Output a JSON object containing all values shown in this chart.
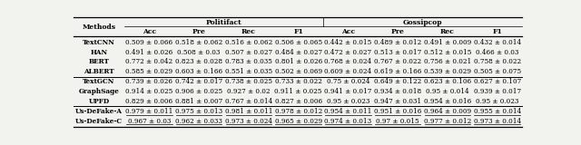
{
  "title_politifact": "Politifact",
  "title_gossipcop": "Gossipcop",
  "col_header": [
    "Acc",
    "Pre",
    "Rec",
    "F1"
  ],
  "row_labels": [
    "TextCNN",
    "HAN",
    "BERT",
    "ALBERT",
    "TextGCN",
    "GraphSage",
    "UPFD",
    "Us-DeFake-A",
    "Us-DeFake-C"
  ],
  "politifact": [
    [
      "0.509 ± 0.066",
      "0.518 ± 0.062",
      "0.516 ± 0.062",
      "0.506 ± 0.065"
    ],
    [
      "0.491 ± 0.026",
      "0.508 ± 0.03",
      "0.507 ± 0.027",
      "0.484 ± 0.027"
    ],
    [
      "0.772 ± 0.042",
      "0.823 ± 0.028",
      "0.783 ± 0.035",
      "0.801 ± 0.026"
    ],
    [
      "0.585 ± 0.029",
      "0.603 ± 0.166",
      "0.551 ± 0.035",
      "0.502 ± 0.069"
    ],
    [
      "0.739 ± 0.026",
      "0.742 ± 0.017",
      "0.738 ± 0.025",
      "0.733 ± 0.022"
    ],
    [
      "0.914 ± 0.025",
      "0.906 ± 0.025",
      "0.927 ± 0.02",
      "0.911 ± 0.025"
    ],
    [
      "0.829 ± 0.006",
      "0.881 ± 0.007",
      "0.767 ± 0.014",
      "0.827 ± 0.006"
    ],
    [
      "0.979 ± 0.011",
      "0.975 ± 0.013",
      "0.981 ± 0.011",
      "0.978 ± 0.012"
    ],
    [
      "0.967 ± 0.03",
      "0.962 ± 0.033",
      "0.973 ± 0.024",
      "0.965 ± 0.029"
    ]
  ],
  "gossipcop": [
    [
      "0.442 ± 0.015",
      "0.489 ± 0.012",
      "0.491 ± 0.009",
      "0.432 ± 0.014"
    ],
    [
      "0.472 ± 0.027",
      "0.513 ± 0.017",
      "0.512 ± 0.015",
      "0.466 ± 0.03"
    ],
    [
      "0.768 ± 0.024",
      "0.767 ± 0.022",
      "0.756 ± 0.021",
      "0.758 ± 0.022"
    ],
    [
      "0.609 ± 0.024",
      "0.619 ± 0.166",
      "0.539 ± 0.029",
      "0.505 ± 0.075"
    ],
    [
      "0.75 ± 0.024",
      "0.649 ± 0.122",
      "0.623 ± 0.106",
      "0.627 ± 0.107"
    ],
    [
      "0.941 ± 0.017",
      "0.934 ± 0.018",
      "0.95 ± 0.014",
      "0.939 ± 0.017"
    ],
    [
      "0.95 ± 0.023",
      "0.947 ± 0.031",
      "0.954 ± 0.016",
      "0.95 ± 0.023"
    ],
    [
      "0.954 ± 0.011",
      "0.951 ± 0.016",
      "0.964 ± 0.009",
      "0.955 ± 0.014"
    ],
    [
      "0.974 ± 0.013",
      "0.97 ± 0.015",
      "0.977 ± 0.012",
      "0.973 ± 0.014"
    ]
  ],
  "underline_poli_rows": [
    7,
    8
  ],
  "underline_goss_rows": [
    7,
    8
  ],
  "separator_after": [
    3,
    6
  ],
  "bg_color": "#f2f2ee",
  "fontsize": 5.2,
  "header_fontsize": 5.5
}
